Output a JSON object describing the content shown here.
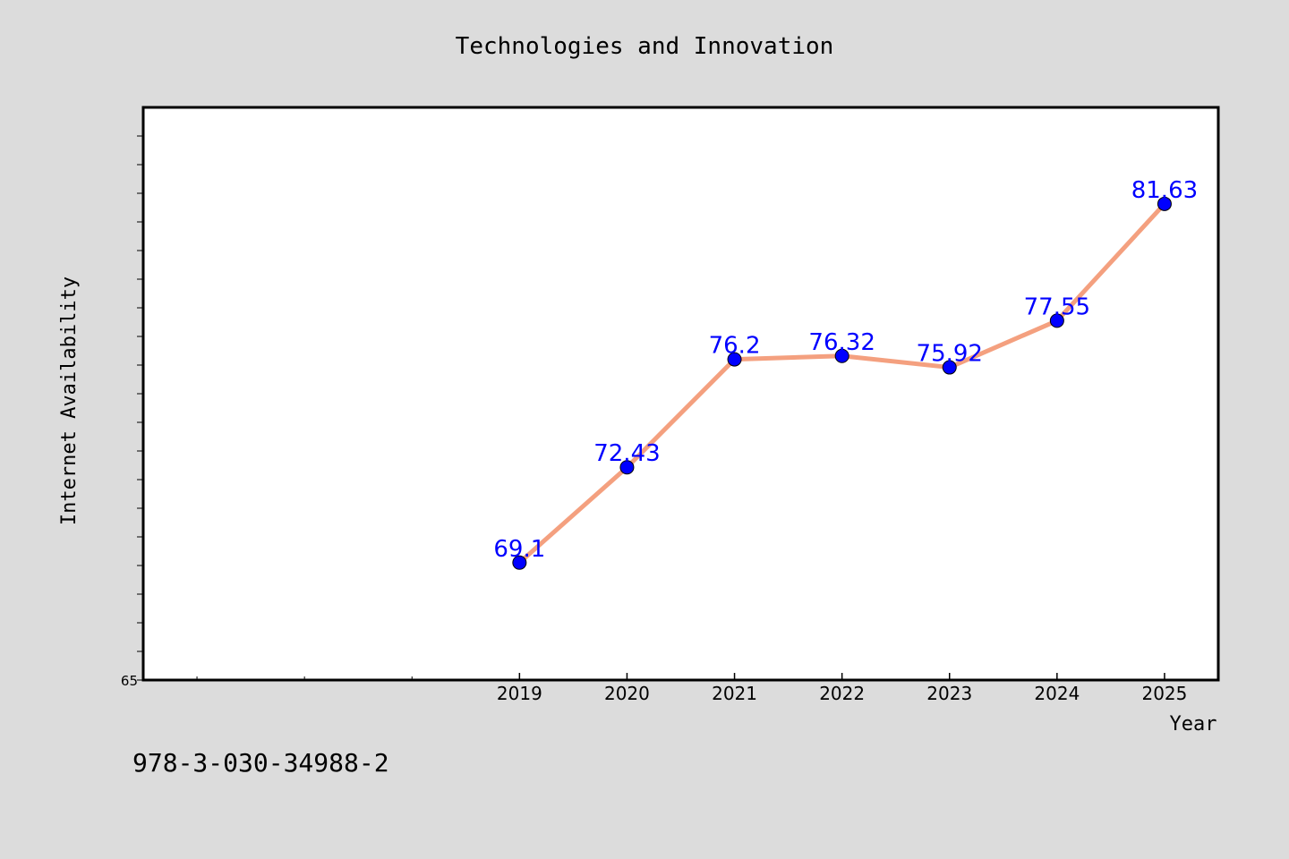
{
  "chart_data": {
    "type": "line",
    "title": "Technologies and Innovation",
    "xlabel": "Year",
    "ylabel": "Internet Availability",
    "x_ticks": [
      "2019",
      "2020",
      "2021",
      "2022",
      "2023",
      "2024",
      "2025"
    ],
    "y_tick_labels": [
      "65"
    ],
    "xlim": [
      2015.5,
      2025.5
    ],
    "ylim": [
      65,
      85
    ],
    "grid": false,
    "series": [
      {
        "x": [
          2019,
          2020,
          2021,
          2022,
          2023,
          2024,
          2025
        ],
        "values": [
          69.1,
          72.43,
          76.2,
          76.32,
          75.92,
          77.55,
          81.63
        ],
        "data_labels": [
          "69.1",
          "72.43",
          "76.2",
          "76.32",
          "75.92",
          "77.55",
          "81.63"
        ],
        "line_color": "#f4a07f",
        "marker_color": "#0000ff"
      }
    ]
  },
  "footnote": "978-3-030-34988-2",
  "colors": {
    "background": "#dcdcdc",
    "plot_background": "#ffffff",
    "axis": "#000000",
    "label_text": "#0000ff"
  }
}
